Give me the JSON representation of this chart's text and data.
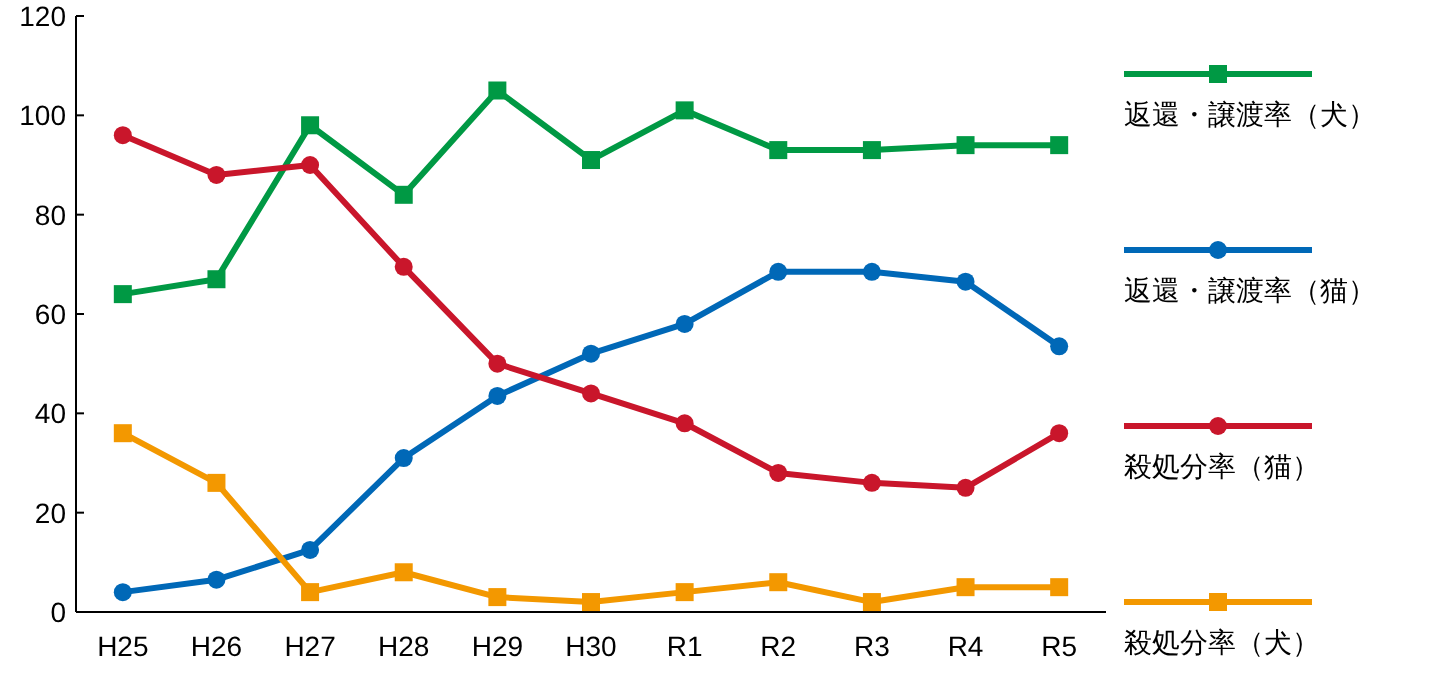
{
  "chart_data": {
    "type": "line",
    "categories": [
      "H25",
      "H26",
      "H27",
      "H28",
      "H29",
      "H30",
      "R1",
      "R2",
      "R3",
      "R4",
      "R5"
    ],
    "ylim": [
      0,
      120
    ],
    "yticks": [
      0,
      20,
      40,
      60,
      80,
      100,
      120
    ],
    "legend": "right",
    "grid": false,
    "line_style": "solid",
    "series": [
      {
        "name": "返還・譲渡率（犬）",
        "color": "#009944",
        "marker": "square",
        "values": [
          64,
          67,
          98,
          84,
          105,
          91,
          101,
          93,
          93,
          94,
          94
        ]
      },
      {
        "name": "返還・譲渡率（猫）",
        "color": "#0068b7",
        "marker": "circle",
        "values": [
          4,
          6.5,
          12.5,
          31,
          43.5,
          52,
          58,
          68.5,
          68.5,
          66.5,
          53.5
        ]
      },
      {
        "name": "殺処分率（猫）",
        "color": "#c9162b",
        "marker": "circle",
        "values": [
          96,
          88,
          90,
          69.5,
          50,
          44,
          38,
          28,
          26,
          25,
          36
        ]
      },
      {
        "name": "殺処分率（犬）",
        "color": "#f39800",
        "marker": "square",
        "values": [
          36,
          26,
          4,
          8,
          3,
          2,
          4,
          6,
          2,
          5,
          5
        ]
      }
    ]
  }
}
